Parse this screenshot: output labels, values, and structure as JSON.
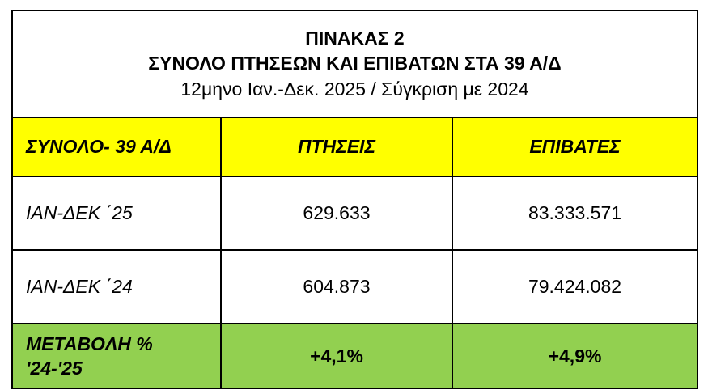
{
  "title": {
    "line1": "ΠΙΝΑΚΑΣ 2",
    "line2": "ΣΥΝΟΛΟ ΠΤΗΣΕΩΝ ΚΑΙ ΕΠΙΒΑΤΩΝ ΣΤΑ 39 Α/Δ",
    "line3": "12μηνο Ιαν.-Δεκ. 2025 / Σύγκριση με 2024"
  },
  "table": {
    "headers": [
      "ΣΥΝΟΛΟ- 39 Α/Δ",
      "ΠΤΗΣΕΙΣ",
      "ΕΠΙΒΑΤΕΣ"
    ],
    "rows": [
      {
        "label": "ΙΑΝ-ΔΕΚ ΄25",
        "flights": "629.633",
        "passengers": "83.333.571"
      },
      {
        "label": "ΙΑΝ-ΔΕΚ ΄24",
        "flights": "604.873",
        "passengers": "79.424.082"
      }
    ],
    "change": {
      "label_line1": "ΜΕΤΑΒΟΛΗ %",
      "label_line2": "'24-'25",
      "flights": "+4,1%",
      "passengers": "+4,9%"
    }
  },
  "colors": {
    "header_bg": "#ffff00",
    "change_bg": "#92d050"
  }
}
